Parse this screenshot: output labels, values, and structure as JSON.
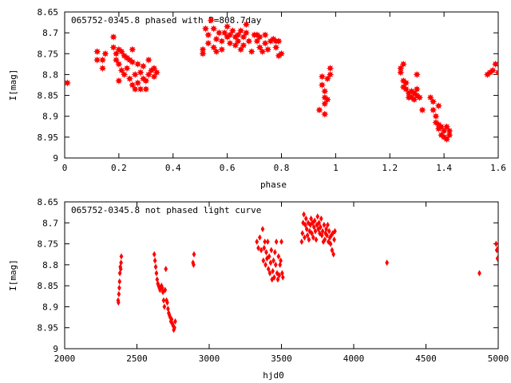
{
  "colors": {
    "points": "#ff0000",
    "axis": "#000000"
  },
  "chart_data": [
    {
      "type": "scatter",
      "title": "065752-0345.8 phased with P=808.7day",
      "xlabel": "phase",
      "ylabel": "I[mag]",
      "xlim": [
        0,
        1.6
      ],
      "ylim": [
        8.65,
        9.0
      ],
      "y_inverted": true,
      "grid": false,
      "x_ticks": [
        "0",
        "0.2",
        "0.4",
        "0.6",
        "0.8",
        "1",
        "1.2",
        "1.4",
        "1.6"
      ],
      "y_ticks": [
        "8.65",
        "8.7",
        "8.75",
        "8.8",
        "8.85",
        "8.9",
        "8.95",
        "9"
      ],
      "marker": "star",
      "series": [
        {
          "points": [
            [
              0.01,
              8.82
            ],
            [
              0.12,
              8.745
            ],
            [
              0.12,
              8.765
            ],
            [
              0.14,
              8.765
            ],
            [
              0.14,
              8.785
            ],
            [
              0.15,
              8.75
            ],
            [
              0.18,
              8.71
            ],
            [
              0.18,
              8.735
            ],
            [
              0.19,
              8.75
            ],
            [
              0.19,
              8.765
            ],
            [
              0.2,
              8.74
            ],
            [
              0.2,
              8.775
            ],
            [
              0.21,
              8.745
            ],
            [
              0.21,
              8.79
            ],
            [
              0.22,
              8.755
            ],
            [
              0.22,
              8.8
            ],
            [
              0.23,
              8.76
            ],
            [
              0.23,
              8.785
            ],
            [
              0.24,
              8.765
            ],
            [
              0.24,
              8.81
            ],
            [
              0.25,
              8.74
            ],
            [
              0.25,
              8.77
            ],
            [
              0.26,
              8.835
            ],
            [
              0.26,
              8.8
            ],
            [
              0.27,
              8.775
            ],
            [
              0.27,
              8.82
            ],
            [
              0.28,
              8.835
            ],
            [
              0.28,
              8.795
            ],
            [
              0.29,
              8.81
            ],
            [
              0.29,
              8.78
            ],
            [
              0.3,
              8.815
            ],
            [
              0.3,
              8.835
            ],
            [
              0.31,
              8.8
            ],
            [
              0.31,
              8.765
            ],
            [
              0.32,
              8.79
            ],
            [
              0.33,
              8.785
            ],
            [
              0.33,
              8.805
            ],
            [
              0.34,
              8.795
            ],
            [
              0.2,
              8.815
            ],
            [
              0.25,
              8.825
            ],
            [
              0.51,
              8.74
            ],
            [
              0.51,
              8.75
            ],
            [
              0.52,
              8.69
            ],
            [
              0.53,
              8.705
            ],
            [
              0.53,
              8.725
            ],
            [
              0.54,
              8.67
            ],
            [
              0.55,
              8.735
            ],
            [
              0.55,
              8.69
            ],
            [
              0.56,
              8.745
            ],
            [
              0.56,
              8.715
            ],
            [
              0.57,
              8.7
            ],
            [
              0.58,
              8.72
            ],
            [
              0.58,
              8.74
            ],
            [
              0.59,
              8.7
            ],
            [
              0.6,
              8.685
            ],
            [
              0.6,
              8.71
            ],
            [
              0.61,
              8.725
            ],
            [
              0.61,
              8.705
            ],
            [
              0.62,
              8.695
            ],
            [
              0.63,
              8.73
            ],
            [
              0.63,
              8.71
            ],
            [
              0.64,
              8.705
            ],
            [
              0.64,
              8.72
            ],
            [
              0.65,
              8.74
            ],
            [
              0.65,
              8.695
            ],
            [
              0.66,
              8.71
            ],
            [
              0.66,
              8.73
            ],
            [
              0.67,
              8.7
            ],
            [
              0.67,
              8.68
            ],
            [
              0.68,
              8.72
            ],
            [
              0.69,
              8.745
            ],
            [
              0.7,
              8.705
            ],
            [
              0.71,
              8.72
            ],
            [
              0.71,
              8.705
            ],
            [
              0.72,
              8.735
            ],
            [
              0.72,
              8.71
            ],
            [
              0.73,
              8.745
            ],
            [
              0.74,
              8.725
            ],
            [
              0.74,
              8.705
            ],
            [
              0.75,
              8.74
            ],
            [
              0.76,
              8.72
            ],
            [
              0.77,
              8.715
            ],
            [
              0.78,
              8.735
            ],
            [
              0.78,
              8.72
            ],
            [
              0.79,
              8.755
            ],
            [
              0.79,
              8.72
            ],
            [
              0.8,
              8.75
            ],
            [
              0.94,
              8.885
            ],
            [
              0.95,
              8.805
            ],
            [
              0.95,
              8.825
            ],
            [
              0.96,
              8.84
            ],
            [
              0.96,
              8.855
            ],
            [
              0.96,
              8.87
            ],
            [
              0.96,
              8.895
            ],
            [
              0.97,
              8.81
            ],
            [
              0.97,
              8.86
            ],
            [
              0.98,
              8.8
            ],
            [
              0.98,
              8.785
            ],
            [
              1.24,
              8.785
            ],
            [
              1.24,
              8.795
            ],
            [
              1.25,
              8.775
            ],
            [
              1.25,
              8.815
            ],
            [
              1.26,
              8.82
            ],
            [
              1.26,
              8.835
            ],
            [
              1.27,
              8.845
            ],
            [
              1.27,
              8.855
            ],
            [
              1.28,
              8.84
            ],
            [
              1.28,
              8.855
            ],
            [
              1.29,
              8.845
            ],
            [
              1.29,
              8.86
            ],
            [
              1.3,
              8.85
            ],
            [
              1.3,
              8.835
            ],
            [
              1.3,
              8.8
            ],
            [
              1.31,
              8.855
            ],
            [
              1.32,
              8.885
            ],
            [
              1.36,
              8.885
            ],
            [
              1.37,
              8.9
            ],
            [
              1.37,
              8.915
            ],
            [
              1.38,
              8.92
            ],
            [
              1.38,
              8.93
            ],
            [
              1.39,
              8.925
            ],
            [
              1.39,
              8.945
            ],
            [
              1.4,
              8.935
            ],
            [
              1.4,
              8.95
            ],
            [
              1.41,
              8.925
            ],
            [
              1.41,
              8.955
            ],
            [
              1.42,
              8.935
            ],
            [
              1.42,
              8.945
            ],
            [
              1.35,
              8.855
            ],
            [
              1.36,
              8.865
            ],
            [
              1.25,
              8.83
            ],
            [
              1.38,
              8.875
            ],
            [
              1.56,
              8.8
            ],
            [
              1.57,
              8.795
            ],
            [
              1.58,
              8.79
            ],
            [
              1.59,
              8.775
            ],
            [
              1.6,
              8.795
            ]
          ]
        }
      ]
    },
    {
      "type": "scatter",
      "title": "065752-0345.8 not phased light curve",
      "xlabel": "hjd0",
      "ylabel": "I[mag]",
      "xlim": [
        2000,
        5000
      ],
      "ylim": [
        8.65,
        9.0
      ],
      "y_inverted": true,
      "grid": false,
      "x_ticks": [
        "2000",
        "2500",
        "3000",
        "3500",
        "4000",
        "4500",
        "5000"
      ],
      "y_ticks": [
        "8.65",
        "8.7",
        "8.75",
        "8.8",
        "8.85",
        "8.9",
        "8.95",
        "9"
      ],
      "marker": "diamond",
      "series": [
        {
          "points": [
            [
              2370,
              8.885
            ],
            [
              2372,
              8.89
            ],
            [
              2375,
              8.87
            ],
            [
              2378,
              8.855
            ],
            [
              2380,
              8.84
            ],
            [
              2382,
              8.82
            ],
            [
              2385,
              8.805
            ],
            [
              2388,
              8.81
            ],
            [
              2390,
              8.795
            ],
            [
              2392,
              8.78
            ],
            [
              2620,
              8.775
            ],
            [
              2625,
              8.79
            ],
            [
              2630,
              8.805
            ],
            [
              2635,
              8.82
            ],
            [
              2640,
              8.835
            ],
            [
              2645,
              8.845
            ],
            [
              2650,
              8.85
            ],
            [
              2655,
              8.855
            ],
            [
              2660,
              8.86
            ],
            [
              2665,
              8.855
            ],
            [
              2670,
              8.85
            ],
            [
              2675,
              8.855
            ],
            [
              2680,
              8.865
            ],
            [
              2685,
              8.885
            ],
            [
              2690,
              8.9
            ],
            [
              2695,
              8.86
            ],
            [
              2700,
              8.81
            ],
            [
              2705,
              8.885
            ],
            [
              2710,
              8.89
            ],
            [
              2715,
              8.905
            ],
            [
              2720,
              8.915
            ],
            [
              2725,
              8.92
            ],
            [
              2730,
              8.925
            ],
            [
              2735,
              8.935
            ],
            [
              2740,
              8.93
            ],
            [
              2745,
              8.94
            ],
            [
              2750,
              8.945
            ],
            [
              2755,
              8.955
            ],
            [
              2760,
              8.95
            ],
            [
              2765,
              8.935
            ],
            [
              2888,
              8.795
            ],
            [
              2892,
              8.8
            ],
            [
              2895,
              8.775
            ],
            [
              3330,
              8.745
            ],
            [
              3340,
              8.76
            ],
            [
              3350,
              8.735
            ],
            [
              3360,
              8.765
            ],
            [
              3370,
              8.715
            ],
            [
              3375,
              8.79
            ],
            [
              3380,
              8.76
            ],
            [
              3385,
              8.745
            ],
            [
              3390,
              8.8
            ],
            [
              3395,
              8.77
            ],
            [
              3400,
              8.785
            ],
            [
              3405,
              8.745
            ],
            [
              3410,
              8.81
            ],
            [
              3415,
              8.78
            ],
            [
              3420,
              8.82
            ],
            [
              3425,
              8.795
            ],
            [
              3430,
              8.765
            ],
            [
              3435,
              8.835
            ],
            [
              3440,
              8.815
            ],
            [
              3445,
              8.79
            ],
            [
              3450,
              8.83
            ],
            [
              3455,
              8.77
            ],
            [
              3460,
              8.8
            ],
            [
              3465,
              8.745
            ],
            [
              3470,
              8.82
            ],
            [
              3475,
              8.835
            ],
            [
              3480,
              8.78
            ],
            [
              3485,
              8.825
            ],
            [
              3490,
              8.8
            ],
            [
              3495,
              8.79
            ],
            [
              3500,
              8.745
            ],
            [
              3505,
              8.82
            ],
            [
              3510,
              8.83
            ],
            [
              3640,
              8.745
            ],
            [
              3645,
              8.725
            ],
            [
              3650,
              8.7
            ],
            [
              3655,
              8.68
            ],
            [
              3660,
              8.735
            ],
            [
              3665,
              8.705
            ],
            [
              3670,
              8.69
            ],
            [
              3675,
              8.715
            ],
            [
              3680,
              8.73
            ],
            [
              3685,
              8.7
            ],
            [
              3690,
              8.74
            ],
            [
              3695,
              8.72
            ],
            [
              3700,
              8.705
            ],
            [
              3705,
              8.69
            ],
            [
              3710,
              8.725
            ],
            [
              3715,
              8.7
            ],
            [
              3720,
              8.735
            ],
            [
              3725,
              8.71
            ],
            [
              3730,
              8.695
            ],
            [
              3735,
              8.72
            ],
            [
              3740,
              8.74
            ],
            [
              3745,
              8.705
            ],
            [
              3750,
              8.685
            ],
            [
              3755,
              8.715
            ],
            [
              3760,
              8.7
            ],
            [
              3765,
              8.725
            ],
            [
              3770,
              8.71
            ],
            [
              3775,
              8.69
            ],
            [
              3780,
              8.73
            ],
            [
              3785,
              8.72
            ],
            [
              3790,
              8.745
            ],
            [
              3795,
              8.705
            ],
            [
              3800,
              8.74
            ],
            [
              3805,
              8.725
            ],
            [
              3810,
              8.715
            ],
            [
              3815,
              8.73
            ],
            [
              3820,
              8.705
            ],
            [
              3825,
              8.745
            ],
            [
              3830,
              8.72
            ],
            [
              3835,
              8.735
            ],
            [
              3840,
              8.75
            ],
            [
              3845,
              8.73
            ],
            [
              3850,
              8.765
            ],
            [
              3855,
              8.725
            ],
            [
              3860,
              8.775
            ],
            [
              3865,
              8.74
            ],
            [
              3870,
              8.72
            ],
            [
              4230,
              8.795
            ],
            [
              4870,
              8.82
            ],
            [
              4985,
              8.75
            ],
            [
              4990,
              8.765
            ],
            [
              4995,
              8.785
            ],
            [
              5000,
              8.76
            ]
          ]
        }
      ]
    }
  ]
}
